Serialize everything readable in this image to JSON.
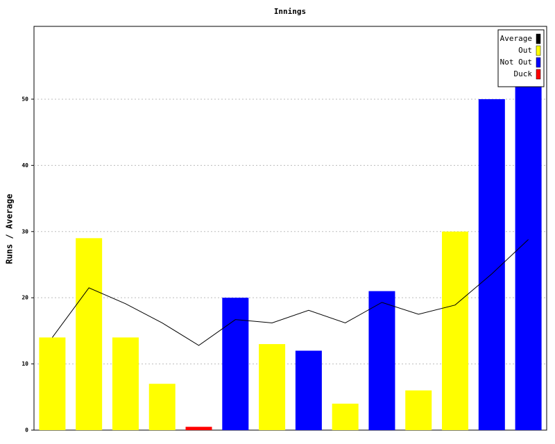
{
  "chart_data": {
    "type": "bar",
    "title": "Innings",
    "y_label": "Runs / Average",
    "ylim": [
      0,
      61
    ],
    "yticks": [
      0,
      10,
      20,
      30,
      40,
      50
    ],
    "grid": true,
    "legend": "top-right",
    "series": [
      {
        "name": "Average",
        "color": "#000000",
        "type": "line",
        "values": [
          14,
          21.5,
          19.1,
          16.2,
          12.8,
          16.7,
          16.2,
          18.1,
          16.2,
          19.3,
          17.5,
          18.9,
          23.6,
          28.8
        ]
      },
      {
        "name": "Out",
        "color": "#ffff00",
        "type": "bar",
        "values": [
          14,
          29,
          14,
          7,
          null,
          null,
          13,
          null,
          4,
          null,
          6,
          30,
          null,
          null
        ]
      },
      {
        "name": "Not Out",
        "color": "#0000ff",
        "type": "bar",
        "values": [
          null,
          null,
          null,
          null,
          null,
          20,
          null,
          12,
          null,
          21,
          null,
          null,
          50,
          52
        ]
      },
      {
        "name": "Duck",
        "color": "#ff0000",
        "type": "bar",
        "values": [
          null,
          null,
          null,
          null,
          0.5,
          null,
          null,
          null,
          null,
          null,
          null,
          null,
          null,
          null
        ]
      }
    ]
  }
}
